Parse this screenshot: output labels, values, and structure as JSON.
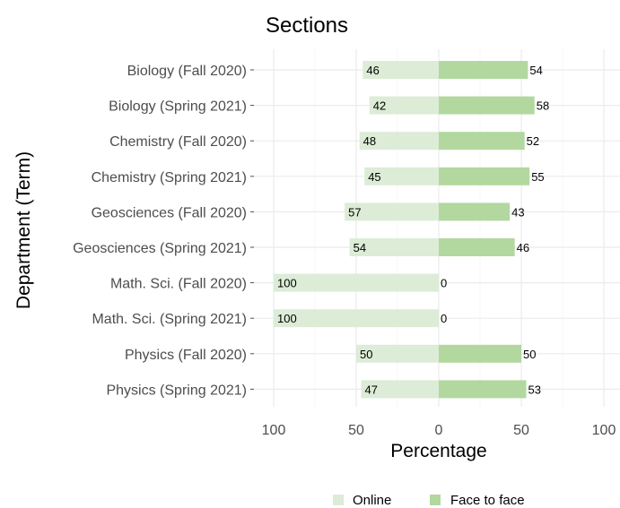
{
  "chart_data": {
    "type": "bar",
    "orientation": "horizontal",
    "layout": "diverging",
    "title": "Sections",
    "xlabel": "Percentage",
    "ylabel": "Department (Term)",
    "xlim": [
      -100,
      100
    ],
    "xticks": [
      -100,
      -50,
      0,
      50,
      100
    ],
    "xtick_labels": [
      "100",
      "50",
      "0",
      "50",
      "100"
    ],
    "grid": true,
    "legend_position": "bottom",
    "categories": [
      "Biology (Fall 2020)",
      "Biology (Spring 2021)",
      "Chemistry (Fall 2020)",
      "Chemistry (Spring 2021)",
      "Geosciences (Fall 2020)",
      "Geosciences (Spring 2021)",
      "Math. Sci. (Fall 2020)",
      "Math. Sci. (Spring 2021)",
      "Physics (Fall 2020)",
      "Physics (Spring 2021)"
    ],
    "series": [
      {
        "name": "Online",
        "direction": "left",
        "color": "#dcecd7",
        "values": [
          46,
          42,
          48,
          45,
          57,
          54,
          100,
          100,
          50,
          47
        ]
      },
      {
        "name": "Face to face",
        "direction": "right",
        "color": "#b2d8a0",
        "values": [
          54,
          58,
          52,
          55,
          43,
          46,
          0,
          0,
          50,
          53
        ]
      }
    ]
  }
}
